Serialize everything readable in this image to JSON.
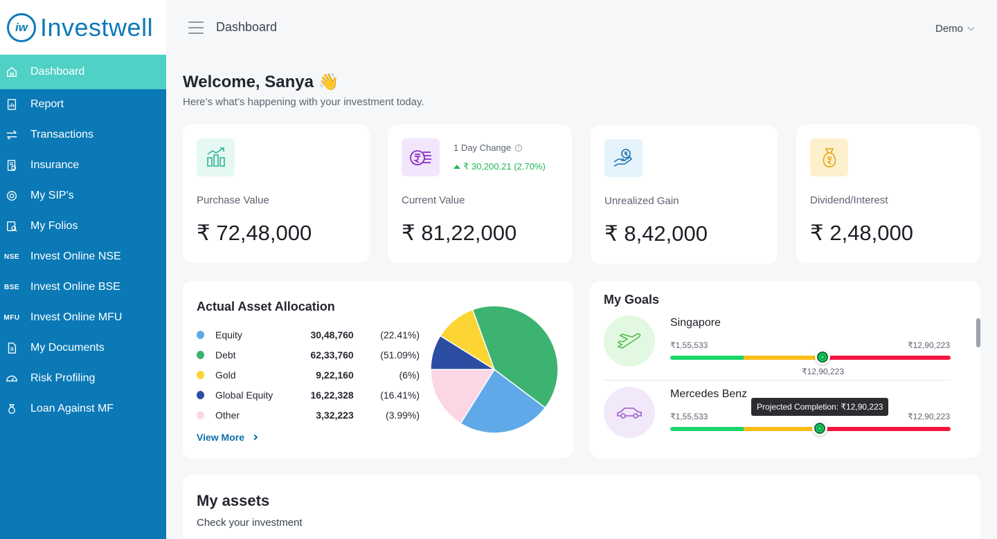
{
  "app": {
    "logo_mark": "iw",
    "logo_text": "Investwell"
  },
  "header": {
    "title": "Dashboard",
    "user_menu_label": "Demo"
  },
  "sidebar": {
    "items": [
      {
        "label": "Dashboard",
        "icon": "home-icon",
        "active": true
      },
      {
        "label": "Report",
        "icon": "report-icon"
      },
      {
        "label": "Transactions",
        "icon": "transactions-icon"
      },
      {
        "label": "Insurance",
        "icon": "insurance-icon"
      },
      {
        "label": "My SIP's",
        "icon": "sip-icon"
      },
      {
        "label": "My Folios",
        "icon": "folios-icon"
      },
      {
        "label": "Invest Online NSE",
        "icon": "nse-icon",
        "icon_text": "NSE"
      },
      {
        "label": "Invest Online BSE",
        "icon": "bse-icon",
        "icon_text": "BSE"
      },
      {
        "label": "Invest Online MFU",
        "icon": "mfu-icon",
        "icon_text": "MFU"
      },
      {
        "label": "My Documents",
        "icon": "documents-icon"
      },
      {
        "label": "Risk Profiling",
        "icon": "risk-profiling-icon"
      },
      {
        "label": "Loan Against MF",
        "icon": "loan-icon"
      }
    ]
  },
  "welcome": {
    "title": "Welcome, Sanya",
    "emoji": "👋",
    "subtitle": "Here’s what’s happening with your investment today."
  },
  "stats": [
    {
      "label": "Purchase Value",
      "value": "₹ 72,48,000",
      "icon": "purchase-value-icon"
    },
    {
      "label": "Current Value",
      "value": "₹ 81,22,000",
      "icon": "current-value-icon",
      "day_change_label": "1 Day Change",
      "day_change_value": "₹ 30,200.21 (2.70%)"
    },
    {
      "label": "Unrealized Gain",
      "value": "₹ 8,42,000",
      "icon": "unrealized-gain-icon"
    },
    {
      "label": "Dividend/Interest",
      "value": "₹ 2,48,000",
      "icon": "dividend-icon"
    }
  ],
  "allocation": {
    "title": "Actual Asset Allocation",
    "rows": [
      {
        "name": "Equity",
        "amount": "30,48,760",
        "pct": "(22.41%)",
        "color": "#5fa9e8"
      },
      {
        "name": "Debt",
        "amount": "62,33,760",
        "pct": "(51.09%)",
        "color": "#3cb371"
      },
      {
        "name": "Gold",
        "amount": "9,22,160",
        "pct": "(6%)",
        "color": "#fcd433"
      },
      {
        "name": "Global Equity",
        "amount": "16,22,328",
        "pct": "(16.41%)",
        "color": "#2b4ea2"
      },
      {
        "name": "Other",
        "amount": "3,32,223",
        "pct": "(3.99%)",
        "color": "#fcd6e5"
      }
    ],
    "view_more": "View More"
  },
  "goals": {
    "title": "My Goals",
    "items": [
      {
        "name": "Singapore",
        "icon": "airplane-icon",
        "start": "₹1,55,533",
        "end": "₹12,90,223",
        "marker_label": "₹12,90,223",
        "progress": 0.54
      },
      {
        "name": "Mercedes Benz",
        "icon": "car-icon",
        "start": "₹1,55,533",
        "end": "₹12,90,223",
        "progress": 0.535
      }
    ],
    "tooltip": "Projected Completion: ₹12,90,223"
  },
  "assets": {
    "title": "My assets",
    "subtitle": "Check your investment"
  }
}
